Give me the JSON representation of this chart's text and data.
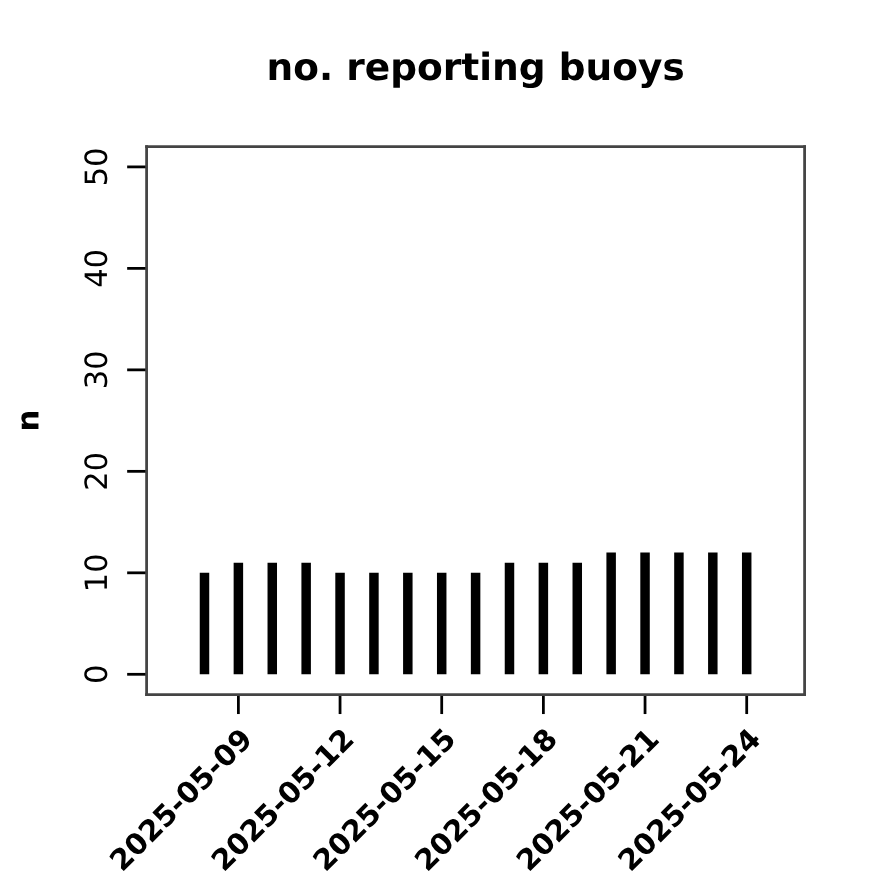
{
  "chart_data": {
    "type": "bar",
    "title": "no. reporting buoys",
    "ylabel": "n",
    "x": [
      "2025-05-08",
      "2025-05-09",
      "2025-05-10",
      "2025-05-11",
      "2025-05-12",
      "2025-05-13",
      "2025-05-14",
      "2025-05-15",
      "2025-05-16",
      "2025-05-17",
      "2025-05-18",
      "2025-05-19",
      "2025-05-20",
      "2025-05-21",
      "2025-05-22",
      "2025-05-23",
      "2025-05-24"
    ],
    "values": [
      10,
      11,
      11,
      11,
      10,
      10,
      10,
      10,
      10,
      11,
      11,
      11,
      12,
      12,
      12,
      12,
      12
    ],
    "color": "#000000",
    "xlim": [
      "2025-05-06T07:00",
      "2025-05-25T17:00"
    ],
    "xticks": [
      "2025-05-09",
      "2025-05-12",
      "2025-05-15",
      "2025-05-18",
      "2025-05-21",
      "2025-05-24"
    ],
    "ylim": [
      -2,
      52
    ],
    "yticks": [
      0,
      10,
      20,
      30,
      40,
      50
    ]
  }
}
